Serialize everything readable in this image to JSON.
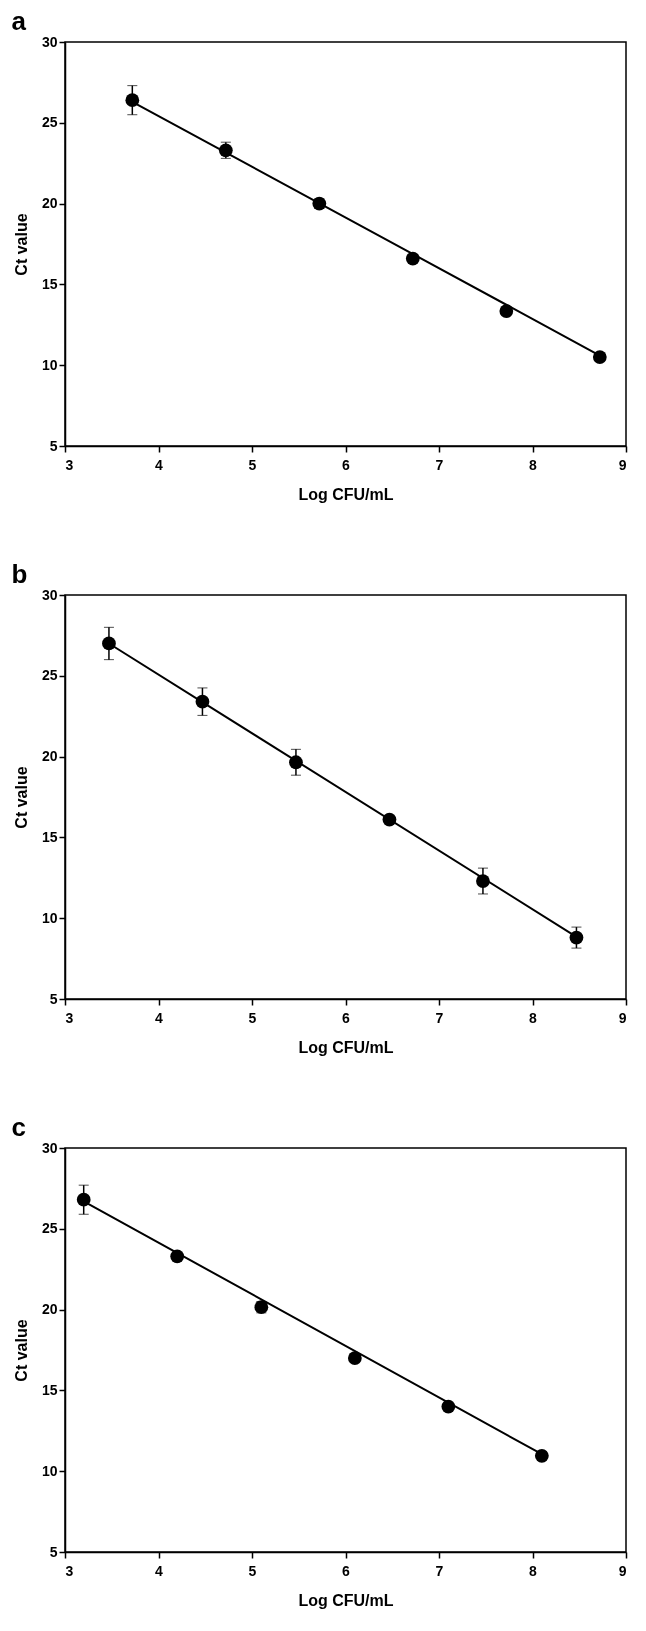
{
  "chart_data": [
    {
      "type": "scatter",
      "title": "a",
      "xlabel": "Log CFU/mL",
      "ylabel": "Ct value",
      "xlim": [
        3,
        9
      ],
      "ylim": [
        5,
        30
      ],
      "xticks": [
        3,
        4,
        5,
        6,
        7,
        8,
        9
      ],
      "yticks": [
        5,
        10,
        15,
        20,
        25,
        30
      ],
      "series": [
        {
          "marker": "circle",
          "color": "#000000",
          "x": [
            3.72,
            4.72,
            5.72,
            6.72,
            7.72,
            8.72
          ],
          "values": [
            26.4,
            23.3,
            20.0,
            16.6,
            13.35,
            10.5
          ],
          "errors": [
            0.9,
            0.5,
            0.3,
            null,
            null,
            null
          ]
        },
        {
          "type": "line",
          "color": "#000000",
          "x": [
            3.72,
            8.72
          ],
          "values": [
            26.3,
            10.6
          ]
        }
      ]
    },
    {
      "type": "scatter",
      "title": "b",
      "xlabel": "Log CFU/mL",
      "ylabel": "Ct value",
      "xlim": [
        3,
        9
      ],
      "ylim": [
        5,
        30
      ],
      "xticks": [
        3,
        4,
        5,
        6,
        7,
        8,
        9
      ],
      "yticks": [
        5,
        10,
        15,
        20,
        25,
        30
      ],
      "series": [
        {
          "marker": "circle",
          "color": "#000000",
          "x": [
            3.47,
            4.47,
            5.47,
            6.47,
            7.47,
            8.47
          ],
          "values": [
            27.0,
            23.4,
            19.65,
            16.1,
            12.3,
            8.8
          ],
          "errors": [
            1.0,
            0.85,
            0.8,
            null,
            0.8,
            0.65
          ]
        },
        {
          "type": "line",
          "color": "#000000",
          "x": [
            3.47,
            8.47
          ],
          "values": [
            27.0,
            8.85
          ]
        }
      ]
    },
    {
      "type": "scatter",
      "title": "c",
      "xlabel": "Log CFU/mL",
      "ylabel": "Ct value",
      "xlim": [
        3,
        9
      ],
      "ylim": [
        5,
        30
      ],
      "xticks": [
        3,
        4,
        5,
        6,
        7,
        8,
        9
      ],
      "yticks": [
        5,
        10,
        15,
        20,
        25,
        30
      ],
      "series": [
        {
          "marker": "circle",
          "color": "#000000",
          "x": [
            3.2,
            4.2,
            5.1,
            6.1,
            7.1,
            8.1
          ],
          "values": [
            26.8,
            23.3,
            20.15,
            17.0,
            14.0,
            10.95
          ],
          "errors": [
            0.9,
            null,
            0.35,
            null,
            null,
            null
          ]
        },
        {
          "type": "line",
          "color": "#000000",
          "x": [
            3.2,
            8.1
          ],
          "values": [
            26.7,
            11.05
          ]
        }
      ]
    }
  ]
}
